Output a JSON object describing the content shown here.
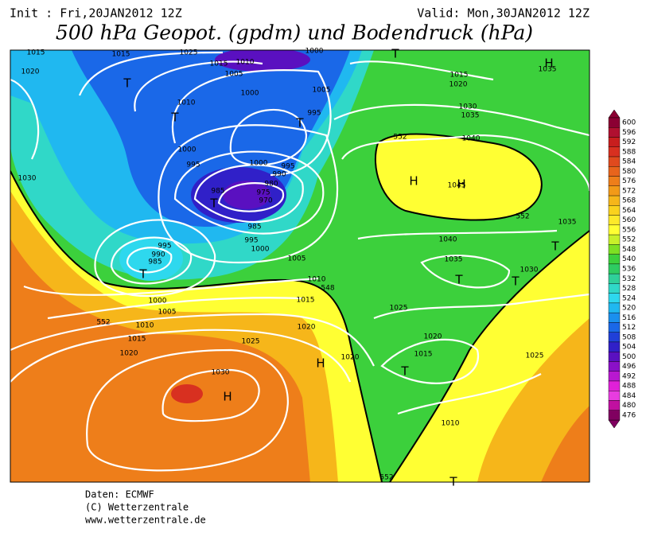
{
  "header": {
    "init": "Init : Fri,20JAN2012 12Z",
    "valid": "Valid: Mon,30JAN2012 12Z",
    "title": "500 hPa Geopot. (gpdm) und Bodendruck (hPa)"
  },
  "colorbar": {
    "levels": [
      600,
      596,
      592,
      588,
      584,
      580,
      576,
      572,
      568,
      564,
      560,
      556,
      552,
      548,
      540,
      536,
      532,
      528,
      524,
      520,
      516,
      512,
      508,
      504,
      500,
      496,
      492,
      488,
      484,
      480,
      476
    ],
    "colors": [
      "#8b0033",
      "#b01030",
      "#c81e1e",
      "#d83020",
      "#e04a1e",
      "#e8641c",
      "#ee7e1a",
      "#f29a18",
      "#f6b61a",
      "#fad21e",
      "#fde92a",
      "#ffff33",
      "#c8f02a",
      "#7de024",
      "#3cd03c",
      "#2ecc62",
      "#2fd09a",
      "#30d8c8",
      "#2ed8ee",
      "#20b8f0",
      "#1a90ee",
      "#1a68e8",
      "#2040d8",
      "#3020c8",
      "#5a10c0",
      "#8a10c8",
      "#b818d0",
      "#e020d8",
      "#e83ce0",
      "#c010a0",
      "#800060"
    ]
  },
  "map": {
    "labels": [
      "1015",
      "1015",
      "1025",
      "1015",
      "1010",
      "1005",
      "1000",
      "1000",
      "T",
      "H",
      "1035",
      "1020",
      "T",
      "1010",
      "T",
      "1005",
      "995",
      "T",
      "1030",
      "1035",
      "1015",
      "1020",
      "1040",
      "552",
      "1000",
      "995",
      "1000",
      "995",
      "990",
      "980",
      "975",
      "970",
      "985",
      "T",
      "H",
      "H",
      "1045",
      "985",
      "995",
      "1000",
      "552",
      "1035",
      "1030",
      "995",
      "990",
      "985",
      "T",
      "1005",
      "1010",
      "1015",
      "548",
      "1040",
      "1035",
      "T",
      "T",
      "T",
      "1030",
      "1000",
      "1005",
      "1010",
      "552",
      "1015",
      "1020",
      "1020",
      "1025",
      "1025",
      "H",
      "1020",
      "1020",
      "1015",
      "T",
      "1025",
      "1030",
      "H",
      "1010",
      "552",
      "T"
    ]
  },
  "footer": {
    "lines": [
      "Daten: ECMWF",
      "(C) Wetterzentrale",
      "www.wetterzentrale.de"
    ]
  }
}
